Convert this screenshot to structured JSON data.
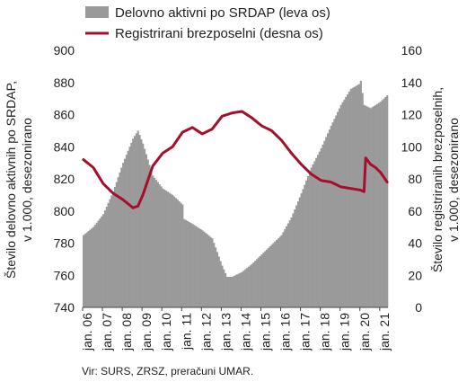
{
  "chart_data": {
    "type": "bar+line",
    "legend": {
      "placement": "top-left",
      "entries": [
        {
          "label": "Delovno aktivni po SRDAP (leva os)",
          "symbol": "area",
          "color": "#9a9a9a"
        },
        {
          "label": "Registrirani brezposelni (desna os)",
          "symbol": "line",
          "color": "#a50f2d"
        }
      ]
    },
    "y_left": {
      "label_line1": "Število delovno aktivnih po SRDAP,",
      "label_line2": "v 1.000, desezonirano",
      "range": [
        740,
        900
      ],
      "ticks": [
        "740",
        "760",
        "780",
        "800",
        "820",
        "840",
        "860",
        "880",
        "900"
      ]
    },
    "y_right": {
      "label_line1": "Število registriranih brezposelnih,",
      "label_line2": "v 1.000, desezonirano",
      "range": [
        0,
        160
      ],
      "ticks": [
        "0",
        "20",
        "40",
        "60",
        "80",
        "100",
        "120",
        "140",
        "160"
      ]
    },
    "x_ticks": [
      "jan. 06",
      "jan. 07",
      "jan. 08",
      "jan. 09",
      "jan. 10",
      "jan. 11",
      "jan. 12",
      "jan. 13",
      "jan. 14",
      "jan. 15",
      "jan. 16",
      "jan. 17",
      "jan. 18",
      "jan. 19",
      "jan. 20",
      "jan. 21"
    ],
    "x_start": "2006-01",
    "grid": false,
    "series": [
      {
        "name": "Delovno aktivni po SRDAP (leva os)",
        "axis": "left",
        "type": "bar",
        "color": "#9a9a9a",
        "anchors": [
          [
            "2006-01",
            785
          ],
          [
            "2006-07",
            790
          ],
          [
            "2007-01",
            798
          ],
          [
            "2007-07",
            812
          ],
          [
            "2008-01",
            830
          ],
          [
            "2008-07",
            845
          ],
          [
            "2008-10",
            850
          ],
          [
            "2009-01",
            842
          ],
          [
            "2009-07",
            822
          ],
          [
            "2010-01",
            814
          ],
          [
            "2010-07",
            810
          ],
          [
            "2011-01",
            804
          ],
          [
            "2011-02",
            795
          ],
          [
            "2011-07",
            792
          ],
          [
            "2012-01",
            788
          ],
          [
            "2012-07",
            783
          ],
          [
            "2013-01",
            766
          ],
          [
            "2013-04",
            759
          ],
          [
            "2013-07",
            759
          ],
          [
            "2014-01",
            762
          ],
          [
            "2014-07",
            767
          ],
          [
            "2015-01",
            773
          ],
          [
            "2015-07",
            779
          ],
          [
            "2016-01",
            785
          ],
          [
            "2016-07",
            796
          ],
          [
            "2017-01",
            811
          ],
          [
            "2017-07",
            827
          ],
          [
            "2018-01",
            839
          ],
          [
            "2018-07",
            853
          ],
          [
            "2019-01",
            866
          ],
          [
            "2019-07",
            876
          ],
          [
            "2019-12",
            879
          ],
          [
            "2020-01",
            881
          ],
          [
            "2020-03",
            866
          ],
          [
            "2020-07",
            864
          ],
          [
            "2020-10",
            866
          ],
          [
            "2021-01",
            868
          ],
          [
            "2021-05",
            872
          ]
        ]
      },
      {
        "name": "Registrirani brezposelni (desna os)",
        "axis": "right",
        "type": "line",
        "color": "#a50f2d",
        "anchors": [
          [
            "2006-01",
            92
          ],
          [
            "2006-07",
            87
          ],
          [
            "2007-01",
            77
          ],
          [
            "2007-07",
            71
          ],
          [
            "2008-01",
            67
          ],
          [
            "2008-07",
            62
          ],
          [
            "2008-10",
            63
          ],
          [
            "2009-01",
            70
          ],
          [
            "2009-07",
            88
          ],
          [
            "2010-01",
            96
          ],
          [
            "2010-07",
            100
          ],
          [
            "2011-01",
            109
          ],
          [
            "2011-07",
            112
          ],
          [
            "2012-01",
            108
          ],
          [
            "2012-07",
            111
          ],
          [
            "2013-01",
            119
          ],
          [
            "2013-07",
            121
          ],
          [
            "2014-01",
            122
          ],
          [
            "2014-07",
            118
          ],
          [
            "2015-01",
            113
          ],
          [
            "2015-07",
            110
          ],
          [
            "2016-01",
            104
          ],
          [
            "2016-07",
            96
          ],
          [
            "2017-01",
            89
          ],
          [
            "2017-07",
            83
          ],
          [
            "2018-01",
            79
          ],
          [
            "2018-07",
            78
          ],
          [
            "2019-01",
            75
          ],
          [
            "2019-07",
            74
          ],
          [
            "2020-01",
            73
          ],
          [
            "2020-03",
            72
          ],
          [
            "2020-04",
            93
          ],
          [
            "2020-07",
            89
          ],
          [
            "2020-10",
            87
          ],
          [
            "2021-01",
            84
          ],
          [
            "2021-05",
            78
          ]
        ]
      }
    ]
  },
  "source": "Vir: SURS, ZRSZ, preračuni UMAR."
}
